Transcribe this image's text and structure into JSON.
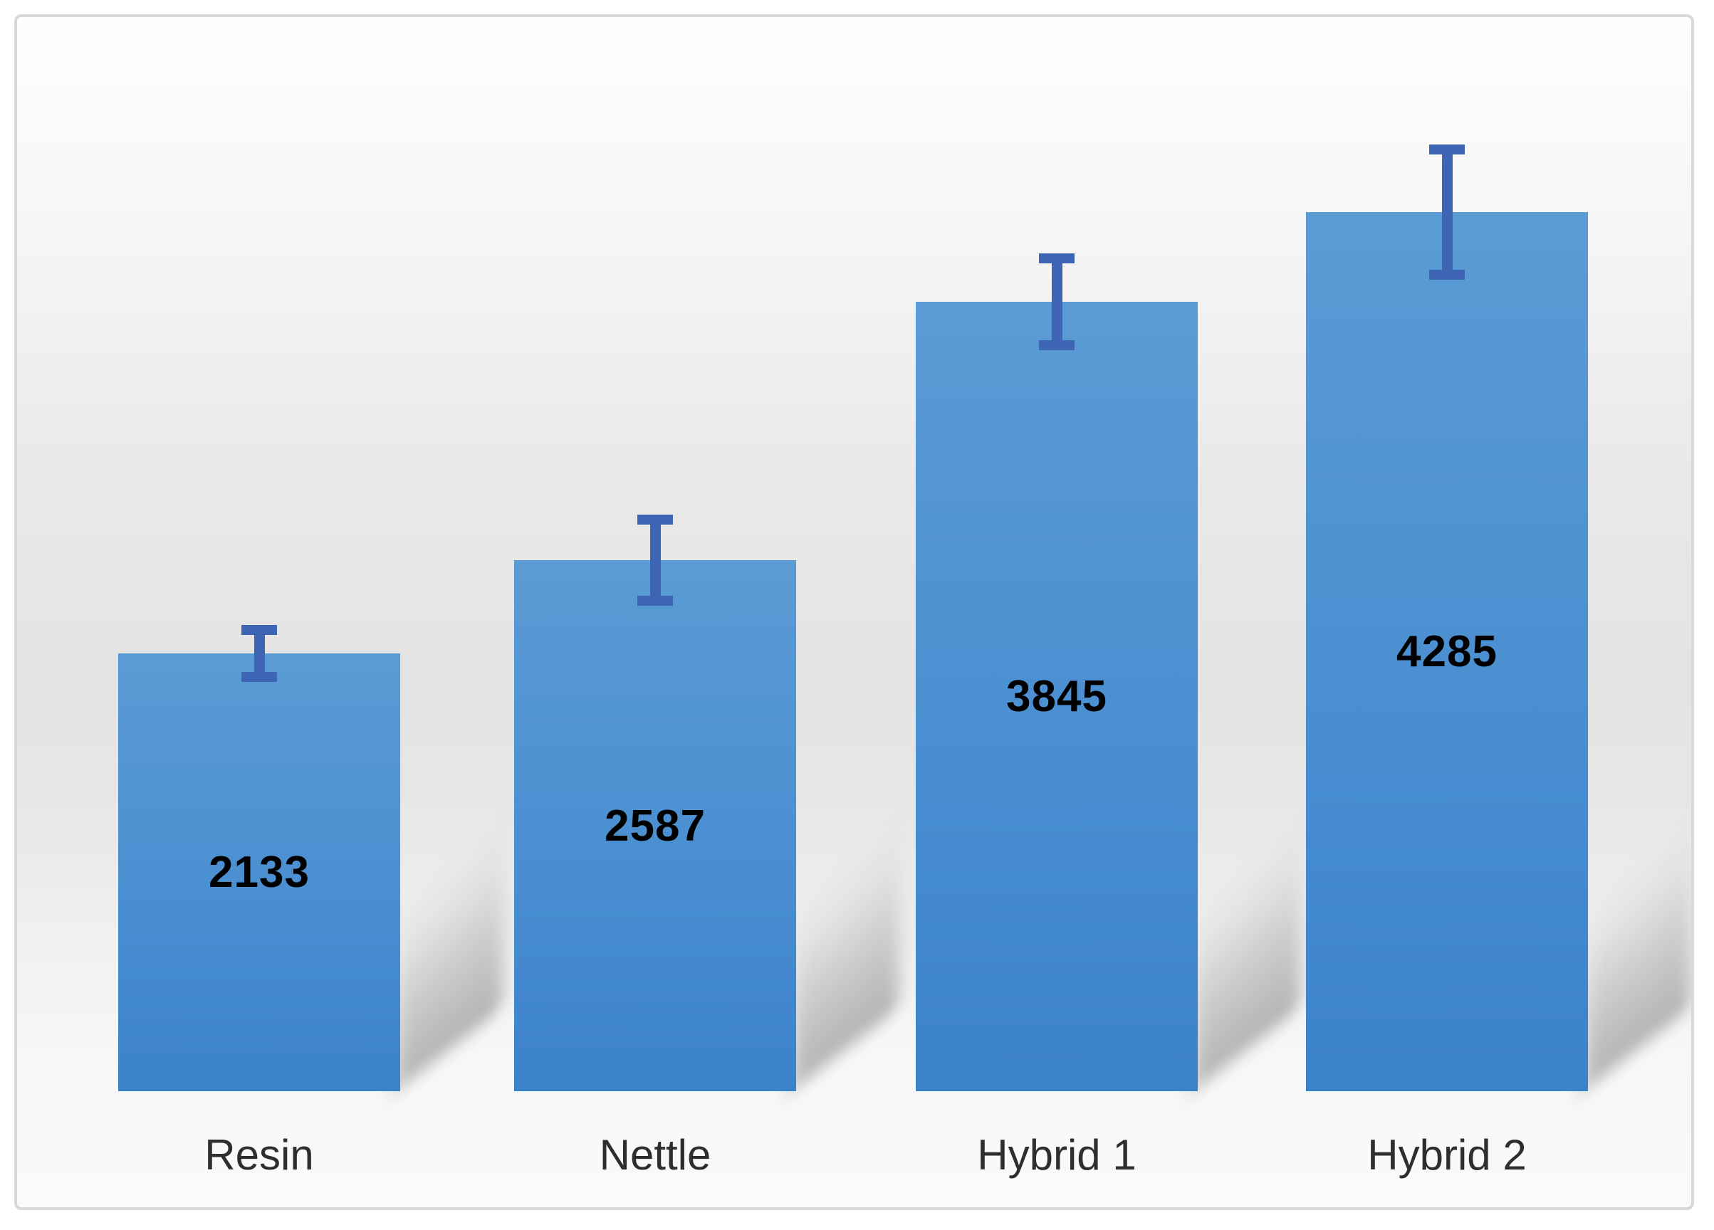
{
  "chart_data": {
    "type": "bar",
    "title": "",
    "xlabel": "",
    "ylabel": "",
    "categories": [
      "Resin",
      "Nettle",
      "Hybrid 1",
      "Hybrid 2"
    ],
    "values": [
      2133,
      2587,
      3845,
      4285
    ],
    "value_labels": [
      "2133",
      "2587",
      "3845",
      "4285"
    ],
    "error_bars_plus_minus": [
      115,
      198,
      212,
      305
    ],
    "ylim": [
      0,
      5200
    ],
    "grid": false,
    "legend": false,
    "axis_lines": false,
    "value_label_position": "center-of-bar",
    "colors": {
      "bar_gradient_top": "#5B9BD5",
      "bar_gradient_mid": "#4A8FD1",
      "bar_gradient_bottom": "#3C82CB",
      "error_bar": "#3D65B4",
      "value_label": "#000000",
      "category_label": "#2E2E2E",
      "frame_border": "#D8D8D8",
      "outer_background": "#FFFFFF",
      "plot_bg_gray": "#E5E5E5"
    }
  }
}
